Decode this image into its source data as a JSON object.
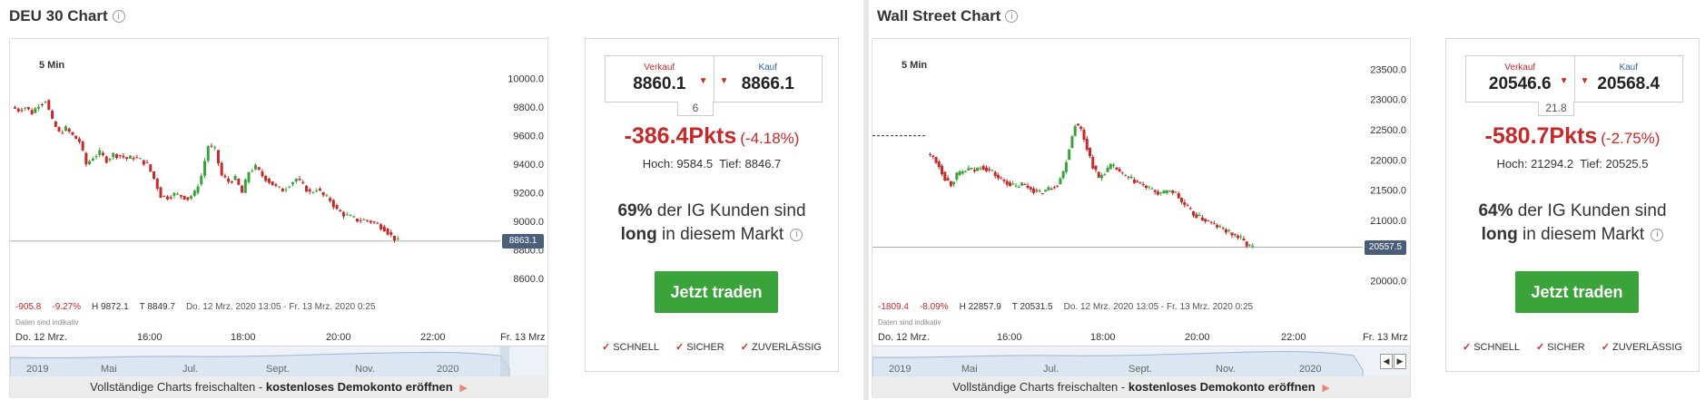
{
  "colors": {
    "bear": "#c82828",
    "bull": "#3aa33a",
    "trade_button": "#3aa33a",
    "kauf": "#2a66b5",
    "price_label_bg": "#4a5e7a"
  },
  "icons": {
    "info": "info-circle-icon",
    "sell_caret": "caret-down-icon",
    "check": "checkmark-icon",
    "link_arrow": "triangle-right-icon"
  },
  "left": {
    "title": "DEU 30 Chart",
    "chart": {
      "interval": "5 Min",
      "y_ticks": [
        "10000.0",
        "9800.0",
        "9600.0",
        "9400.0",
        "9200.0",
        "9000.0",
        "8800.0",
        "8600.0"
      ],
      "current_price": "8863.1",
      "stats": {
        "change": "-905.8",
        "change_pct": "-9.27%",
        "high": "H 9872.1",
        "low": "T 8849.7",
        "range": "Do. 12 Mrz. 2020 13:05 - Fr. 13 Mrz. 2020 0:25"
      },
      "daten_hint": "Daten sind indikativ",
      "time_labels": [
        "Do. 12 Mrz.",
        "16:00",
        "18:00",
        "20:00",
        "22:00",
        "Fr. 13 Mrz"
      ],
      "nav_labels": [
        "2019",
        "Mai",
        "Jul.",
        "Sept.",
        "Nov.",
        "2020"
      ],
      "unlock_text": "Vollständige Charts freischalten -",
      "unlock_link": "kostenloses Demokonto eröffnen",
      "chart_data": {
        "type": "candlestick",
        "ylim": [
          8500,
          10150
        ],
        "y_ticks": [
          10000,
          9800,
          9600,
          9400,
          9200,
          9000,
          8800,
          8600
        ],
        "x_labels": [
          "Do. 12 Mrz.",
          "16:00",
          "18:00",
          "20:00",
          "22:00",
          "Fr. 13 Mrz"
        ],
        "current": 8863.1,
        "path_close": [
          9780,
          9800,
          9760,
          9820,
          9850,
          9700,
          9620,
          9650,
          9600,
          9560,
          9400,
          9450,
          9480,
          9430,
          9470,
          9460,
          9440,
          9450,
          9430,
          9400,
          9300,
          9180,
          9170,
          9190,
          9180,
          9160,
          9200,
          9320,
          9530,
          9500,
          9320,
          9280,
          9300,
          9200,
          9350,
          9380,
          9320,
          9280,
          9240,
          9220,
          9260,
          9300,
          9250,
          9200,
          9230,
          9180,
          9150,
          9080,
          9050,
          9030,
          9010,
          9010,
          9000,
          8980,
          8950,
          8900,
          8863
        ]
      }
    },
    "trade": {
      "sell_label": "Verkauf",
      "sell_price": "8860.1",
      "buy_label": "Kauf",
      "buy_price": "8866.1",
      "spread": "6",
      "change_pts": "-386.4Pkts",
      "change_pct": "(-4.18%)",
      "high_label": "Hoch:",
      "high": "9584.5",
      "low_label": "Tief:",
      "low": "8846.7",
      "sentiment_pct": "69%",
      "sentiment_text": "der IG Kunden sind",
      "sentiment_dir": "long",
      "sentiment_tail": "in diesem Markt",
      "button": "Jetzt traden",
      "features": [
        "SCHNELL",
        "SICHER",
        "ZUVERLÄSSIG"
      ]
    }
  },
  "right": {
    "title": "Wall Street Chart",
    "chart": {
      "interval": "5 Min",
      "y_ticks": [
        "23500.0",
        "23000.0",
        "22500.0",
        "22000.0",
        "21500.0",
        "21000.0",
        "20500.0",
        "20000.0"
      ],
      "current_price": "20557.5",
      "stats": {
        "change": "-1809.4",
        "change_pct": "-8.09%",
        "high": "H 22857.9",
        "low": "T 20531.5",
        "range": "Do. 12 Mrz. 2020 13:05 - Fr. 13 Mrz. 2020 0:25"
      },
      "daten_hint": "Daten sind indikativ",
      "time_labels": [
        "Do. 12 Mrz.",
        "16:00",
        "18:00",
        "20:00",
        "22:00",
        "Fr. 13 Mrz"
      ],
      "nav_labels": [
        "2019",
        "Mai",
        "Jul.",
        "Sept.",
        "Nov.",
        "2020"
      ],
      "unlock_text": "Vollständige Charts freischalten -",
      "unlock_link": "kostenloses Demokonto eröffnen",
      "chart_data": {
        "type": "candlestick",
        "ylim": [
          19800,
          23700
        ],
        "y_ticks": [
          23500,
          23000,
          22500,
          22000,
          21500,
          21000,
          20500,
          20000
        ],
        "x_labels": [
          "Do. 12 Mrz.",
          "16:00",
          "18:00",
          "20:00",
          "22:00",
          "Fr. 13 Mrz"
        ],
        "current": 20557.5,
        "prev_close": 22400,
        "path_close": [
          22050,
          21900,
          21700,
          21600,
          21750,
          21800,
          21850,
          21820,
          21900,
          21850,
          21800,
          21700,
          21650,
          21600,
          21550,
          21600,
          21550,
          21500,
          21450,
          21500,
          21550,
          21600,
          21800,
          22200,
          22600,
          22500,
          22200,
          21900,
          21700,
          21800,
          21900,
          21850,
          21750,
          21700,
          21650,
          21600,
          21550,
          21500,
          21450,
          21450,
          21500,
          21450,
          21300,
          21200,
          21100,
          21050,
          21000,
          20950,
          20900,
          20850,
          20800,
          20750,
          20700,
          20600,
          20558
        ]
      }
    },
    "trade": {
      "sell_label": "Verkauf",
      "sell_price": "20546.6",
      "buy_label": "Kauf",
      "buy_price": "20568.4",
      "spread": "21.8",
      "change_pts": "-580.7Pkts",
      "change_pct": "(-2.75%)",
      "high_label": "Hoch:",
      "high": "21294.2",
      "low_label": "Tief:",
      "low": "20525.5",
      "sentiment_pct": "64%",
      "sentiment_text": "der IG Kunden sind",
      "sentiment_dir": "long",
      "sentiment_tail": "in diesem Markt",
      "button": "Jetzt traden",
      "features": [
        "SCHNELL",
        "SICHER",
        "ZUVERLÄSSIG"
      ]
    }
  }
}
